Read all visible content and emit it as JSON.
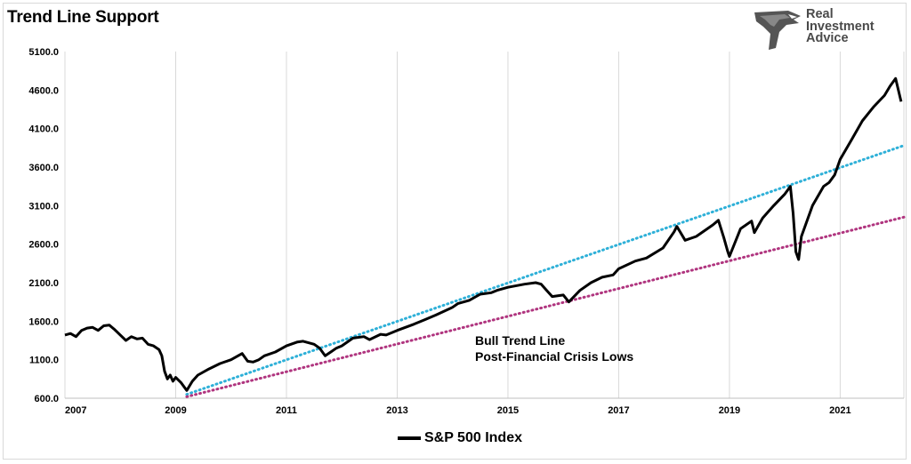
{
  "header": {
    "title": "Trend Line Support"
  },
  "logo": {
    "line1": "Real",
    "line2": "Investment",
    "line3": "Advice",
    "mark": "eagle-icon"
  },
  "legend": {
    "label": "S&P 500 Index"
  },
  "chart_data": {
    "type": "line",
    "title": "Trend Line Support",
    "xlabel": "",
    "ylabel": "",
    "xlim": [
      2007,
      2022.15
    ],
    "ylim": [
      600,
      5100
    ],
    "x_ticks": [
      "2007",
      "2009",
      "2011",
      "2013",
      "2015",
      "2017",
      "2019",
      "2021"
    ],
    "y_ticks": [
      "600.0",
      "1100.0",
      "1600.0",
      "2100.0",
      "2600.0",
      "3100.0",
      "3600.0",
      "4100.0",
      "4600.0",
      "5100.0"
    ],
    "grid": "vertical",
    "legend_position": "bottom",
    "colors": {
      "index": "#000000",
      "bull_trend": "#2eb0d8",
      "crisis_lows": "#b0357f",
      "grid": "#d9d9d9"
    },
    "series": [
      {
        "name": "S&P 500 Index",
        "x": [
          2007.0,
          2007.1,
          2007.2,
          2007.3,
          2007.4,
          2007.5,
          2007.6,
          2007.7,
          2007.8,
          2007.9,
          2008.0,
          2008.1,
          2008.2,
          2008.3,
          2008.4,
          2008.5,
          2008.6,
          2008.7,
          2008.75,
          2008.8,
          2008.85,
          2008.9,
          2008.95,
          2009.0,
          2009.1,
          2009.15,
          2009.2,
          2009.3,
          2009.4,
          2009.6,
          2009.8,
          2010.0,
          2010.2,
          2010.3,
          2010.4,
          2010.5,
          2010.6,
          2010.8,
          2011.0,
          2011.2,
          2011.3,
          2011.5,
          2011.6,
          2011.7,
          2011.8,
          2011.9,
          2012.0,
          2012.2,
          2012.4,
          2012.5,
          2012.7,
          2012.8,
          2013.0,
          2013.3,
          2013.5,
          2013.7,
          2014.0,
          2014.1,
          2014.3,
          2014.5,
          2014.7,
          2014.8,
          2015.0,
          2015.3,
          2015.5,
          2015.6,
          2015.7,
          2015.8,
          2016.0,
          2016.1,
          2016.3,
          2016.5,
          2016.7,
          2016.9,
          2017.0,
          2017.3,
          2017.5,
          2017.8,
          2018.0,
          2018.05,
          2018.2,
          2018.4,
          2018.7,
          2018.8,
          2018.9,
          2018.97,
          2019.0,
          2019.2,
          2019.4,
          2019.45,
          2019.6,
          2019.8,
          2020.0,
          2020.1,
          2020.15,
          2020.2,
          2020.25,
          2020.3,
          2020.5,
          2020.7,
          2020.8,
          2020.9,
          2021.0,
          2021.2,
          2021.4,
          2021.6,
          2021.8,
          2021.9,
          2022.0,
          2022.05,
          2022.1
        ],
        "values": [
          1420,
          1440,
          1400,
          1480,
          1510,
          1520,
          1480,
          1540,
          1550,
          1490,
          1420,
          1350,
          1400,
          1370,
          1380,
          1300,
          1280,
          1230,
          1150,
          950,
          850,
          900,
          820,
          870,
          800,
          750,
          700,
          820,
          900,
          980,
          1050,
          1100,
          1180,
          1080,
          1070,
          1100,
          1150,
          1200,
          1280,
          1330,
          1340,
          1300,
          1250,
          1150,
          1200,
          1250,
          1280,
          1380,
          1400,
          1360,
          1430,
          1420,
          1480,
          1560,
          1620,
          1680,
          1780,
          1830,
          1870,
          1950,
          1970,
          2000,
          2040,
          2080,
          2100,
          2080,
          2000,
          1920,
          1940,
          1850,
          2000,
          2100,
          2170,
          2200,
          2280,
          2380,
          2420,
          2550,
          2760,
          2830,
          2650,
          2700,
          2850,
          2910,
          2680,
          2500,
          2440,
          2800,
          2900,
          2750,
          2940,
          3100,
          3250,
          3350,
          3000,
          2500,
          2400,
          2700,
          3100,
          3350,
          3400,
          3500,
          3700,
          3950,
          4200,
          4380,
          4530,
          4650,
          4750,
          4600,
          4450
        ]
      },
      {
        "name": "Bull Trend Line",
        "x": [
          2009.2,
          2022.15
        ],
        "values": [
          650,
          3880
        ],
        "style": "dotted"
      },
      {
        "name": "Post-Financial Crisis Lows",
        "x": [
          2009.2,
          2022.15
        ],
        "values": [
          620,
          2950
        ],
        "style": "dotted"
      }
    ],
    "annotations": [
      "Bull Trend Line",
      "Post-Financial Crisis Lows"
    ]
  }
}
